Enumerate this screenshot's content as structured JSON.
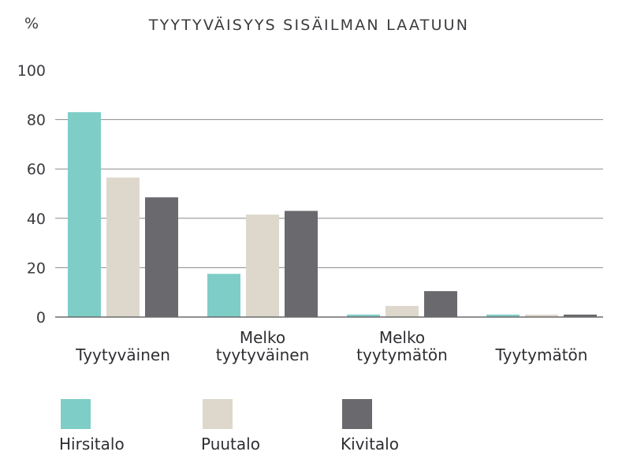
{
  "chart_data": {
    "type": "bar",
    "title": "TYYTYVÄISYYS SISÄILMAN LAATUUN",
    "unit_label": "%",
    "ylim": [
      0,
      100
    ],
    "yticks": [
      0,
      20,
      40,
      60,
      80,
      100
    ],
    "grid": true,
    "legend_position": "bottom",
    "categories": [
      [
        "Tyytyväinen"
      ],
      [
        "Melko",
        "tyytyväinen"
      ],
      [
        "Melko",
        "tyytymätön"
      ],
      [
        "Tyytymätön"
      ]
    ],
    "series": [
      {
        "name": "Hirsitalo",
        "color": "#7fcdc7",
        "values": [
          83,
          17.5,
          1,
          1
        ]
      },
      {
        "name": "Puutalo",
        "color": "#ddd8cb",
        "values": [
          56.5,
          41.5,
          4.5,
          1
        ]
      },
      {
        "name": "Kivitalo",
        "color": "#6a6a6e",
        "values": [
          48.5,
          43,
          10.5,
          1
        ]
      }
    ]
  }
}
